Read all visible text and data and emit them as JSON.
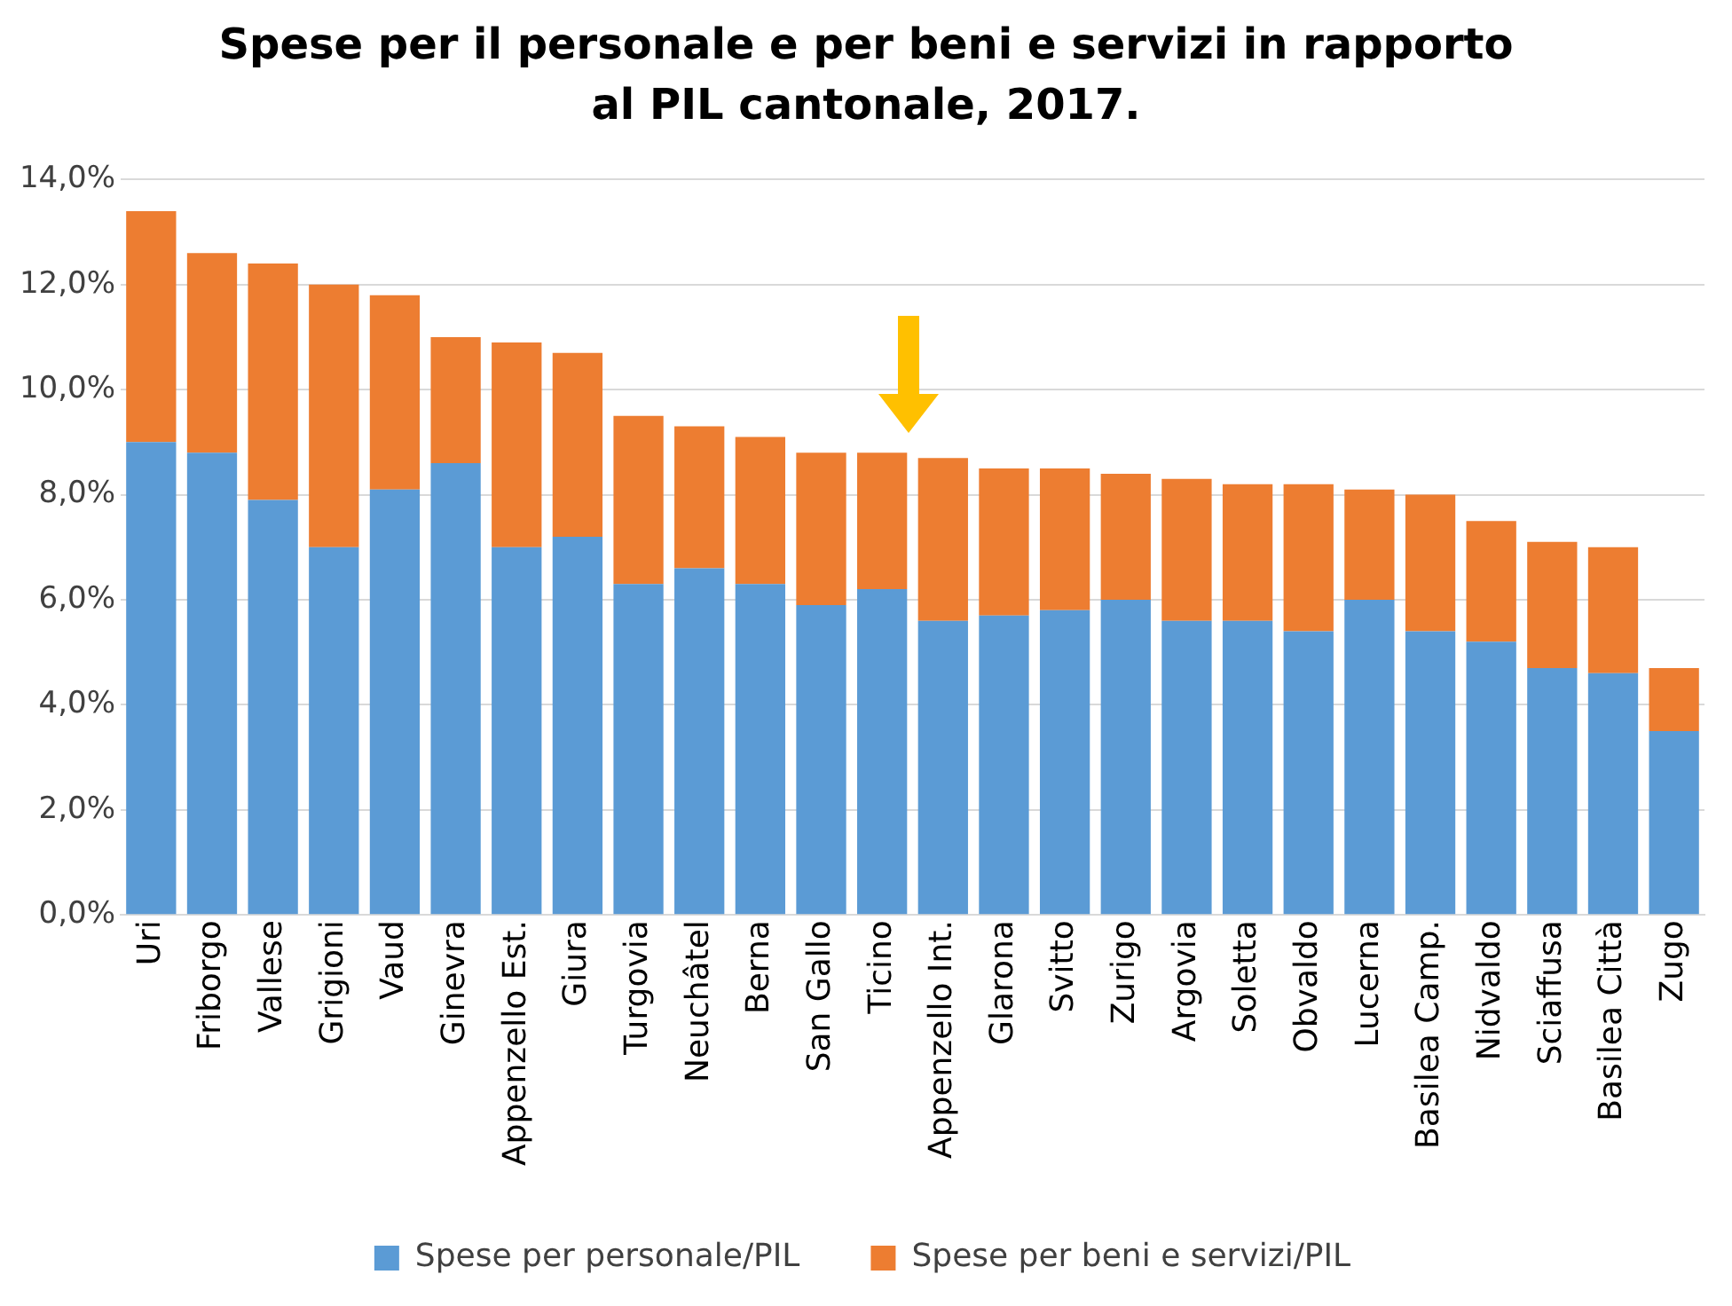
{
  "chart_data": {
    "type": "bar",
    "title": "Spese per il personale e per beni e servizi in rapporto al PIL cantonale, 2017.",
    "stacked": true,
    "grid": "y",
    "legend": "bottom",
    "categories": [
      "Uri",
      "Friborgo",
      "Vallese",
      "Grigioni",
      "Vaud",
      "Ginevra",
      "Appenzello Est.",
      "Giura",
      "Turgovia",
      "Neuchâtel",
      "Berna",
      "San Gallo",
      "Ticino",
      "Appenzello Int.",
      "Glarona",
      "Svitto",
      "Zurigo",
      "Argovia",
      "Soletta",
      "Obvaldo",
      "Lucerna",
      "Basilea Camp.",
      "Nidvaldo",
      "Sciaffusa",
      "Basilea Città",
      "Zugo"
    ],
    "series": [
      {
        "name": "Spese per personale/PIL",
        "color": "#5b9bd5",
        "values": [
          9.0,
          8.8,
          7.9,
          7.0,
          8.1,
          8.6,
          7.0,
          7.2,
          6.3,
          6.6,
          6.3,
          5.9,
          6.2,
          5.6,
          5.7,
          5.8,
          6.0,
          5.6,
          5.6,
          5.4,
          6.0,
          5.4,
          5.2,
          4.7,
          4.6,
          3.5
        ]
      },
      {
        "name": "Spese per beni e servizi/PIL",
        "color": "#ed7d31",
        "values": [
          4.4,
          3.8,
          4.5,
          5.0,
          3.7,
          2.4,
          3.9,
          3.5,
          3.2,
          2.7,
          2.8,
          2.9,
          2.6,
          3.1,
          2.8,
          2.7,
          2.4,
          2.7,
          2.6,
          2.8,
          2.1,
          2.6,
          2.3,
          2.4,
          2.4,
          1.2
        ]
      }
    ],
    "ylim": [
      0,
      14
    ],
    "yticks": [
      {
        "value": 0,
        "label": "0,0%"
      },
      {
        "value": 2,
        "label": "2,0%"
      },
      {
        "value": 4,
        "label": "4,0%"
      },
      {
        "value": 6,
        "label": "6,0%"
      },
      {
        "value": 8,
        "label": "8,0%"
      },
      {
        "value": 10,
        "label": "10,0%"
      },
      {
        "value": 12,
        "label": "12,0%"
      },
      {
        "value": 14,
        "label": "14,0%"
      }
    ]
  }
}
